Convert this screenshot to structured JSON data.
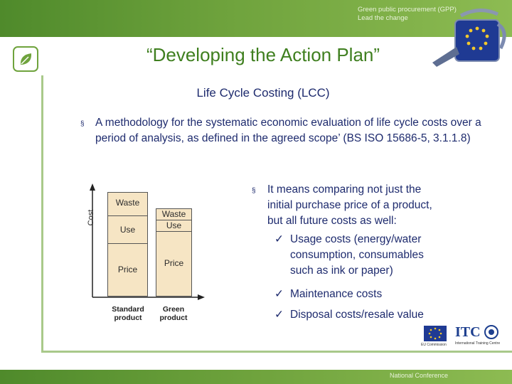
{
  "header": {
    "tagline_line1": "Green public procurement (GPP)",
    "tagline_line2": "Lead the change"
  },
  "slide": {
    "title": "“Developing the Action Plan”",
    "subtitle": "Life Cycle Costing (LCC)"
  },
  "bullet1": {
    "marker": "§",
    "text": "A methodology for the systematic economic evaluation of life cycle costs over a period of analysis, as defined in the agreed scope’ (BS ISO 15686-5, 3.1.1.8)"
  },
  "bullet2": {
    "marker": "§",
    "line1": "It means comparing not just the",
    "line2_pre": "initial ",
    "line2_link": "purchase price",
    "line2_post": " of a product,",
    "line3": "but all future costs as well:"
  },
  "checks": {
    "mark": "✓",
    "items": [
      {
        "lines": [
          "Usage costs (energy/water",
          "consumption, consumables",
          "such as ink or paper)"
        ]
      },
      {
        "lines": [
          "Maintenance costs"
        ]
      },
      {
        "lines": [
          "Disposal costs/resale value"
        ]
      }
    ]
  },
  "diagram": {
    "axis_label": "Cost",
    "standard": {
      "waste": "Waste",
      "use": "Use",
      "price": "Price",
      "caption_line1": "Standard",
      "caption_line2": "product"
    },
    "green": {
      "waste": "Waste",
      "use": "Use",
      "price": "Price",
      "caption_line1": "Green",
      "caption_line2": "product"
    }
  },
  "logos": {
    "itc": "ITC",
    "itc_caption": "International Training Centre",
    "eu_caption": "EU Commission"
  },
  "footer": {
    "text": "National Conference"
  },
  "colors": {
    "green_accent": "#3f7f1f",
    "text_blue": "#1e2b6e",
    "box_fill": "#f6e5c4"
  }
}
